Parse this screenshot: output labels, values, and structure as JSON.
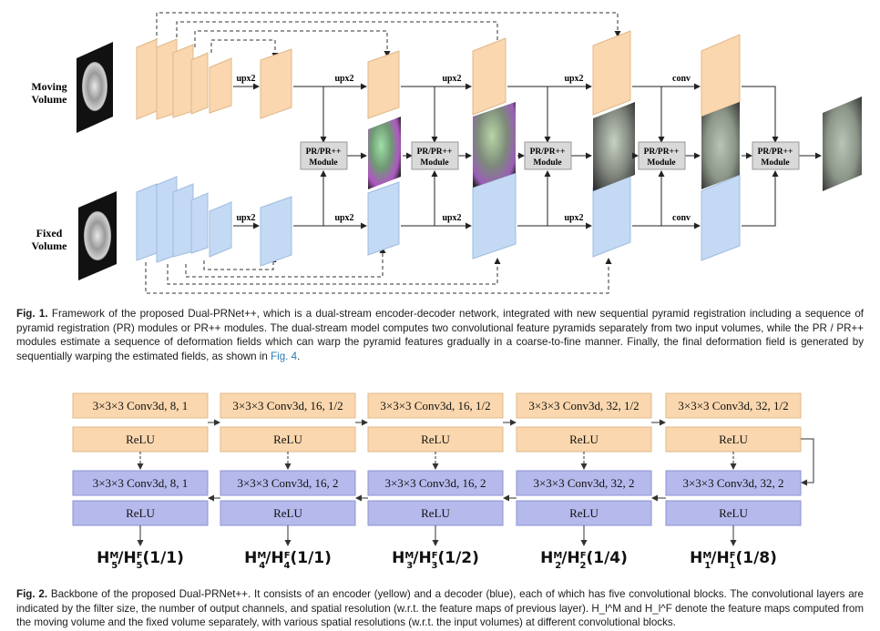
{
  "fig1": {
    "moving_label": [
      "Moving",
      "Volume"
    ],
    "fixed_label": [
      "Fixed",
      "Volume"
    ],
    "ops": {
      "upx2": "upx2",
      "conv": "conv"
    },
    "module_label": [
      "PR/PR++",
      "Module"
    ],
    "caption_label": "Fig. 1.",
    "caption_text": "Framework of the proposed Dual-PRNet++, which is a dual-stream encoder-decoder network, integrated with new sequential pyramid registration including a sequence of pyramid registration (PR) modules or PR++ modules. The dual-stream model computes two convolutional feature pyramids separately from two input volumes, while the PR / PR++ modules estimate a sequence of deformation fields which can warp the pyramid features gradually in a coarse-to-fine manner. Finally, the final deformation field is generated by sequentially warping the estimated fields, as shown in",
    "caption_link": "Fig. 4",
    "caption_end": "."
  },
  "fig2": {
    "encoder_conv": [
      "3×3×3 Conv3d, 8, 1",
      "3×3×3 Conv3d, 16, 1/2",
      "3×3×3 Conv3d, 16, 1/2",
      "3×3×3 Conv3d, 32, 1/2",
      "3×3×3 Conv3d, 32, 1/2"
    ],
    "decoder_conv": [
      "3×3×3 Conv3d, 8, 1",
      "3×3×3 Conv3d, 16, 2",
      "3×3×3 Conv3d, 16, 2",
      "3×3×3 Conv3d, 32, 2",
      "3×3×3 Conv3d, 32, 2"
    ],
    "relu": "ReLU",
    "outputs": [
      {
        "idx": "5",
        "res": "(1/1)"
      },
      {
        "idx": "4",
        "res": "(1/1)"
      },
      {
        "idx": "3",
        "res": "(1/2)"
      },
      {
        "idx": "2",
        "res": "(1/4)"
      },
      {
        "idx": "1",
        "res": "(1/8)"
      }
    ],
    "output_symbol": "H",
    "sup_moving": "M",
    "sup_fixed": "F",
    "caption_label": "Fig. 2.",
    "caption_text": "Backbone of the proposed Dual-PRNet++. It consists of an encoder (yellow) and a decoder (blue), each of which has five convolutional blocks. The convolutional layers are indicated by the filter size, the number of output channels, and spatial resolution (w.r.t. the feature maps of previous layer). H_l^M and H_l^F denote the feature maps computed from the moving volume and the fixed volume separately, with various spatial resolutions (w.r.t. the input volumes) at different convolutional blocks."
  },
  "colors": {
    "encoder": "#fad7ae",
    "encoder_edge": "#e0b88a",
    "decoder": "#b6b9ec",
    "decoder_edge": "#8e92d2",
    "fixed_stream": "#c4d9f3",
    "module_box": "#d9d9d9",
    "link": "#2a7ab0"
  }
}
